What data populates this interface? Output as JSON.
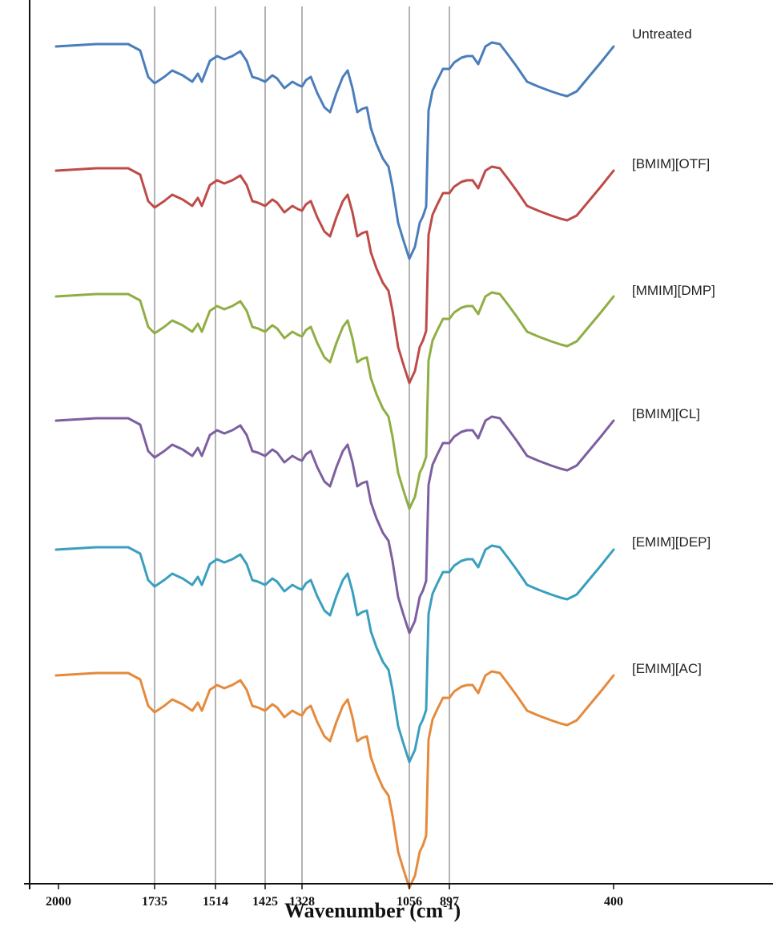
{
  "chart_data": {
    "type": "line",
    "title": "",
    "xlabel": "Wavenumber (cm",
    "xlabel_sup": "-1",
    "xlabel_close": ")",
    "ylabel": "",
    "x_reversed": true,
    "xlim": [
      2000,
      400
    ],
    "x_ticks": [
      "2000",
      "1735",
      "1514",
      "1425",
      "1328",
      "1056",
      "897",
      "400"
    ],
    "reference_lines": [
      1735,
      1514,
      1425,
      1328,
      1056,
      897
    ],
    "grid": false,
    "legend": "inline-right",
    "series": [
      {
        "name": "Untreated",
        "color": "#4a7ebb"
      },
      {
        "name": "[BMIM][OTF]",
        "color": "#be4b48"
      },
      {
        "name": "[MMIM][DMP]",
        "color": "#8fae44"
      },
      {
        "name": "[BMIM][CL]",
        "color": "#7d5fa0"
      },
      {
        "name": "[EMIM][DEP]",
        "color": "#3a9fbf"
      },
      {
        "name": "[EMIM][AC]",
        "color": "#e58a3c"
      }
    ]
  }
}
